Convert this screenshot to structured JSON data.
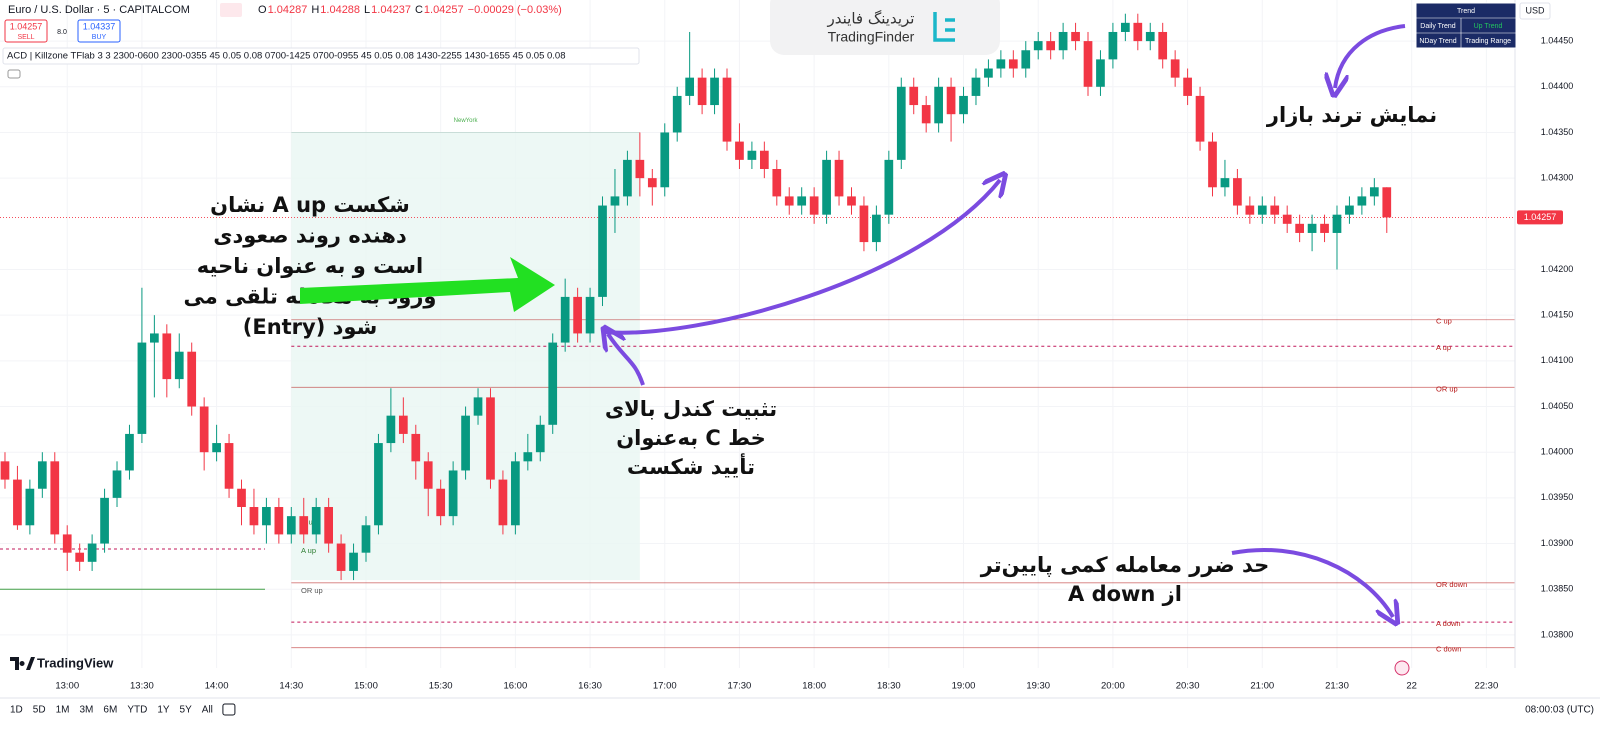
{
  "header": {
    "symbol": "Euro / U.S. Dollar · 5 · CAPITALCOM",
    "quote": [
      [
        "O",
        "1.04287"
      ],
      [
        "H",
        "1.04288"
      ],
      [
        "L",
        "1.04237"
      ],
      [
        "C",
        "1.04257"
      ]
    ],
    "change": "−0.00029 (−0.03%)",
    "sell_price": "1.04257",
    "sell": "SELL",
    "spread": "8.0",
    "buy_price": "1.04337",
    "buy": "BUY",
    "indicator": "ACD | Killzone TFlab 3 3 2300-0600 2300-0355 45 0.05 0.08 0700-1425 0700-0955 45 0.05 0.08 1430-2255 1430-1655 45 0.05 0.08"
  },
  "logo": {
    "fa": "تریدینگ فایندر",
    "en": "TradingFinder"
  },
  "trend_table": {
    "title": "Trend",
    "rows": [
      [
        "Daily Trend",
        "Up Trend"
      ],
      [
        "NDay Trend",
        "Trading Range"
      ]
    ]
  },
  "currency": "USD",
  "annotations": {
    "breakout": [
      "شکست A up نشان",
      "دهنده روند صعودی",
      "است و به عنوان ناحیه",
      "ورود به معامله تلقی می",
      "شود (Entry)"
    ],
    "confirm": [
      "تثبیت کندل بالای",
      "خط C به‌عنوان",
      "تأیید شکست"
    ],
    "trend": "نمایش ترند بازار",
    "stop": [
      "حد ضرر معامله کمی پایین‌تر",
      "از A down"
    ]
  },
  "chart_data": {
    "type": "candlestick",
    "up_color": "#089981",
    "down_color": "#f23645",
    "xlim": [
      -0.4,
      121.3
    ],
    "ylim": [
      1.03778,
      1.04495
    ],
    "xticks": [
      {
        "value": 5,
        "label": "13:00"
      },
      {
        "value": 11,
        "label": "13:30"
      },
      {
        "value": 17,
        "label": "14:00"
      },
      {
        "value": 23,
        "label": "14:30"
      },
      {
        "value": 29,
        "label": "15:00"
      },
      {
        "value": 35,
        "label": "15:30"
      },
      {
        "value": 41,
        "label": "16:00"
      },
      {
        "value": 47,
        "label": "16:30"
      },
      {
        "value": 53,
        "label": "17:00"
      },
      {
        "value": 59,
        "label": "17:30"
      },
      {
        "value": 65,
        "label": "18:00"
      },
      {
        "value": 71,
        "label": "18:30"
      },
      {
        "value": 77,
        "label": "19:00"
      },
      {
        "value": 83,
        "label": "19:30"
      },
      {
        "value": 89,
        "label": "20:00"
      },
      {
        "value": 95,
        "label": "20:30"
      },
      {
        "value": 101,
        "label": "21:00"
      },
      {
        "value": 107,
        "label": "21:30"
      },
      {
        "value": 113,
        "label": "22"
      },
      {
        "value": 119,
        "label": "22:30"
      }
    ],
    "yticks": [
      {
        "value": 1.0445,
        "label": "1.04450"
      },
      {
        "value": 1.044,
        "label": "1.04400"
      },
      {
        "value": 1.0435,
        "label": "1.04350"
      },
      {
        "value": 1.043,
        "label": "1.04300"
      },
      {
        "value": 1.042,
        "label": "1.04200"
      },
      {
        "value": 1.0415,
        "label": "1.04150"
      },
      {
        "value": 1.041,
        "label": "1.04100"
      },
      {
        "value": 1.0405,
        "label": "1.04050"
      },
      {
        "value": 1.04,
        "label": "1.04000"
      },
      {
        "value": 1.0395,
        "label": "1.03950"
      },
      {
        "value": 1.039,
        "label": "1.03900"
      },
      {
        "value": 1.0385,
        "label": "1.03850"
      },
      {
        "value": 1.038,
        "label": "1.03800"
      }
    ],
    "last_price": {
      "value": 1.04257,
      "label": "1.04257"
    },
    "session": {
      "name": "NewYork",
      "x": [
        23,
        51
      ],
      "y": [
        1.0386,
        1.0435
      ]
    },
    "levels": [
      {
        "name": "C up",
        "value": 1.04145,
        "style": "solid"
      },
      {
        "name": "A up",
        "value": 1.04116,
        "style": "dashed"
      },
      {
        "name": "OR up",
        "value": 1.04071,
        "style": "solid"
      },
      {
        "name": "OR down",
        "value": 1.03857,
        "style": "solid"
      },
      {
        "name": "A down",
        "value": 1.03814,
        "style": "dashed"
      },
      {
        "name": "C down",
        "value": 1.03786,
        "style": "solid"
      }
    ],
    "prev_levels": [
      {
        "name": "C up",
        "value": 1.03925,
        "style": "none"
      },
      {
        "name": "A up",
        "value": 1.03894,
        "style": "dashed"
      },
      {
        "name": "OR up",
        "value": 1.0385,
        "style": "green"
      }
    ],
    "ohlc": [
      [
        1.0399,
        1.04,
        1.0396,
        1.0397
      ],
      [
        1.0397,
        1.03985,
        1.03915,
        1.0392
      ],
      [
        1.0392,
        1.0397,
        1.0391,
        1.0396
      ],
      [
        1.0396,
        1.04,
        1.0395,
        1.0399
      ],
      [
        1.0399,
        1.04,
        1.039,
        1.0391
      ],
      [
        1.0391,
        1.0392,
        1.0387,
        1.0389
      ],
      [
        1.0389,
        1.039,
        1.0387,
        1.0388
      ],
      [
        1.0388,
        1.0391,
        1.0387,
        1.039
      ],
      [
        1.039,
        1.0396,
        1.0389,
        1.0395
      ],
      [
        1.0395,
        1.0399,
        1.0394,
        1.0398
      ],
      [
        1.0398,
        1.0403,
        1.0397,
        1.0402
      ],
      [
        1.0402,
        1.0418,
        1.0401,
        1.0412
      ],
      [
        1.0412,
        1.0415,
        1.0406,
        1.0413
      ],
      [
        1.0413,
        1.0414,
        1.0406,
        1.0408
      ],
      [
        1.0408,
        1.0413,
        1.0407,
        1.0411
      ],
      [
        1.0411,
        1.0412,
        1.0404,
        1.0405
      ],
      [
        1.0405,
        1.0406,
        1.0398,
        1.04
      ],
      [
        1.04,
        1.0403,
        1.0399,
        1.0401
      ],
      [
        1.0401,
        1.0402,
        1.0395,
        1.0396
      ],
      [
        1.0396,
        1.0397,
        1.0392,
        1.0394
      ],
      [
        1.0394,
        1.0396,
        1.0391,
        1.0392
      ],
      [
        1.0392,
        1.0395,
        1.039,
        1.0394
      ],
      [
        1.0394,
        1.0395,
        1.039,
        1.0391
      ],
      [
        1.0391,
        1.0394,
        1.039,
        1.0393
      ],
      [
        1.0393,
        1.0395,
        1.039,
        1.0391
      ],
      [
        1.0391,
        1.0395,
        1.039,
        1.0394
      ],
      [
        1.0394,
        1.0395,
        1.0389,
        1.039
      ],
      [
        1.039,
        1.0391,
        1.0386,
        1.0387
      ],
      [
        1.0387,
        1.039,
        1.0386,
        1.0389
      ],
      [
        1.0389,
        1.0393,
        1.0388,
        1.0392
      ],
      [
        1.0392,
        1.0402,
        1.0391,
        1.0401
      ],
      [
        1.0401,
        1.0407,
        1.04,
        1.0404
      ],
      [
        1.0404,
        1.0406,
        1.0401,
        1.0402
      ],
      [
        1.0402,
        1.0403,
        1.0397,
        1.0399
      ],
      [
        1.0399,
        1.04,
        1.0393,
        1.0396
      ],
      [
        1.0396,
        1.0397,
        1.0392,
        1.0393
      ],
      [
        1.0393,
        1.0399,
        1.0392,
        1.0398
      ],
      [
        1.0398,
        1.0405,
        1.0397,
        1.0404
      ],
      [
        1.0404,
        1.0407,
        1.0403,
        1.0406
      ],
      [
        1.0406,
        1.0407,
        1.0396,
        1.0397
      ],
      [
        1.0397,
        1.0398,
        1.0391,
        1.0392
      ],
      [
        1.0392,
        1.04,
        1.0391,
        1.0399
      ],
      [
        1.0399,
        1.0402,
        1.0398,
        1.04
      ],
      [
        1.04,
        1.0404,
        1.0399,
        1.0403
      ],
      [
        1.0403,
        1.0413,
        1.0402,
        1.0412
      ],
      [
        1.0412,
        1.0419,
        1.0411,
        1.0417
      ],
      [
        1.0417,
        1.0418,
        1.0412,
        1.0413
      ],
      [
        1.0413,
        1.0418,
        1.0412,
        1.0417
      ],
      [
        1.0417,
        1.0428,
        1.0416,
        1.0427
      ],
      [
        1.0427,
        1.0431,
        1.0424,
        1.0428
      ],
      [
        1.0428,
        1.0433,
        1.0427,
        1.0432
      ],
      [
        1.0432,
        1.0435,
        1.0428,
        1.043
      ],
      [
        1.043,
        1.0431,
        1.0427,
        1.0429
      ],
      [
        1.0429,
        1.0436,
        1.0428,
        1.0435
      ],
      [
        1.0435,
        1.044,
        1.0434,
        1.0439
      ],
      [
        1.0439,
        1.0446,
        1.0438,
        1.0441
      ],
      [
        1.0441,
        1.0442,
        1.0437,
        1.0438
      ],
      [
        1.0438,
        1.0442,
        1.0437,
        1.0441
      ],
      [
        1.0441,
        1.0442,
        1.0433,
        1.0434
      ],
      [
        1.0434,
        1.0436,
        1.0431,
        1.0432
      ],
      [
        1.0432,
        1.0434,
        1.0431,
        1.0433
      ],
      [
        1.0433,
        1.0434,
        1.043,
        1.0431
      ],
      [
        1.0431,
        1.0432,
        1.0427,
        1.0428
      ],
      [
        1.0428,
        1.0429,
        1.0426,
        1.0427
      ],
      [
        1.0427,
        1.0429,
        1.0426,
        1.0428
      ],
      [
        1.0428,
        1.0429,
        1.0425,
        1.0426
      ],
      [
        1.0426,
        1.0433,
        1.0425,
        1.0432
      ],
      [
        1.0432,
        1.0433,
        1.0427,
        1.0428
      ],
      [
        1.0428,
        1.0429,
        1.0426,
        1.0427
      ],
      [
        1.0427,
        1.0428,
        1.0422,
        1.0423
      ],
      [
        1.0423,
        1.0427,
        1.0422,
        1.0426
      ],
      [
        1.0426,
        1.0433,
        1.0425,
        1.0432
      ],
      [
        1.0432,
        1.0441,
        1.0431,
        1.044
      ],
      [
        1.044,
        1.0441,
        1.0437,
        1.0438
      ],
      [
        1.0438,
        1.0439,
        1.0435,
        1.0436
      ],
      [
        1.0436,
        1.0441,
        1.0435,
        1.044
      ],
      [
        1.044,
        1.0441,
        1.0434,
        1.0437
      ],
      [
        1.0437,
        1.044,
        1.0436,
        1.0439
      ],
      [
        1.0439,
        1.0442,
        1.0438,
        1.0441
      ],
      [
        1.0441,
        1.0443,
        1.044,
        1.0442
      ],
      [
        1.0442,
        1.0444,
        1.0441,
        1.0443
      ],
      [
        1.0443,
        1.0444,
        1.0441,
        1.0442
      ],
      [
        1.0442,
        1.0445,
        1.0441,
        1.0444
      ],
      [
        1.0444,
        1.0446,
        1.0443,
        1.0445
      ],
      [
        1.0445,
        1.0446,
        1.0443,
        1.0444
      ],
      [
        1.0444,
        1.0447,
        1.0443,
        1.0446
      ],
      [
        1.0446,
        1.0447,
        1.0444,
        1.0445
      ],
      [
        1.0445,
        1.0446,
        1.0439,
        1.044
      ],
      [
        1.044,
        1.0444,
        1.0439,
        1.0443
      ],
      [
        1.0443,
        1.0447,
        1.0442,
        1.0446
      ],
      [
        1.0446,
        1.0448,
        1.0445,
        1.0447
      ],
      [
        1.0447,
        1.0448,
        1.0444,
        1.0445
      ],
      [
        1.0445,
        1.0447,
        1.0444,
        1.0446
      ],
      [
        1.0446,
        1.0447,
        1.0442,
        1.0443
      ],
      [
        1.0443,
        1.0444,
        1.044,
        1.0441
      ],
      [
        1.0441,
        1.0442,
        1.0438,
        1.0439
      ],
      [
        1.0439,
        1.044,
        1.0433,
        1.0434
      ],
      [
        1.0434,
        1.0435,
        1.0428,
        1.0429
      ],
      [
        1.0429,
        1.0432,
        1.0428,
        1.043
      ],
      [
        1.043,
        1.0431,
        1.0426,
        1.0427
      ],
      [
        1.0427,
        1.0428,
        1.0425,
        1.0426
      ],
      [
        1.0426,
        1.0428,
        1.0425,
        1.0427
      ],
      [
        1.0427,
        1.0428,
        1.0425,
        1.0426
      ],
      [
        1.0426,
        1.0427,
        1.0424,
        1.0425
      ],
      [
        1.0425,
        1.0426,
        1.0423,
        1.0424
      ],
      [
        1.0424,
        1.0426,
        1.0422,
        1.0425
      ],
      [
        1.0425,
        1.0426,
        1.0423,
        1.0424
      ],
      [
        1.0424,
        1.0427,
        1.042,
        1.0426
      ],
      [
        1.0426,
        1.0428,
        1.0425,
        1.0427
      ],
      [
        1.0427,
        1.0429,
        1.0426,
        1.0428
      ],
      [
        1.0428,
        1.043,
        1.0427,
        1.0429
      ],
      [
        1.0429,
        1.0429,
        1.0424,
        1.04257
      ]
    ]
  },
  "toolbar": {
    "ranges": [
      "1D",
      "5D",
      "1M",
      "3M",
      "6M",
      "YTD",
      "1Y",
      "5Y",
      "All"
    ],
    "clock": "08:00:03 (UTC)",
    "brand": "TradingView"
  }
}
